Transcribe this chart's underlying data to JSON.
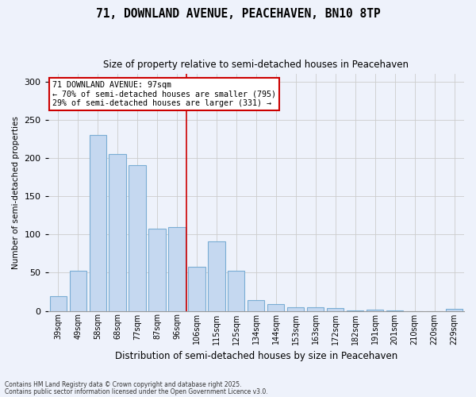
{
  "title1": "71, DOWNLAND AVENUE, PEACEHAVEN, BN10 8TP",
  "title2": "Size of property relative to semi-detached houses in Peacehaven",
  "xlabel": "Distribution of semi-detached houses by size in Peacehaven",
  "ylabel": "Number of semi-detached properties",
  "categories": [
    "39sqm",
    "49sqm",
    "58sqm",
    "68sqm",
    "77sqm",
    "87sqm",
    "96sqm",
    "106sqm",
    "115sqm",
    "125sqm",
    "134sqm",
    "144sqm",
    "153sqm",
    "163sqm",
    "172sqm",
    "182sqm",
    "191sqm",
    "201sqm",
    "210sqm",
    "220sqm",
    "229sqm"
  ],
  "values": [
    19,
    52,
    230,
    205,
    191,
    108,
    110,
    58,
    91,
    52,
    14,
    9,
    5,
    5,
    4,
    1,
    2,
    1,
    0,
    0,
    3
  ],
  "bar_color": "#c5d8f0",
  "bar_edge_color": "#7aadd4",
  "annotation_title": "71 DOWNLAND AVENUE: 97sqm",
  "annotation_line1": "← 70% of semi-detached houses are smaller (795)",
  "annotation_line2": "29% of semi-detached houses are larger (331) →",
  "annotation_box_facecolor": "#ffffff",
  "annotation_box_edgecolor": "#cc0000",
  "vline_color": "#cc0000",
  "grid_color": "#cccccc",
  "background_color": "#eef2fb",
  "ylim": [
    0,
    310
  ],
  "yticks": [
    0,
    50,
    100,
    150,
    200,
    250,
    300
  ],
  "footnote1": "Contains HM Land Registry data © Crown copyright and database right 2025.",
  "footnote2": "Contains public sector information licensed under the Open Government Licence v3.0."
}
